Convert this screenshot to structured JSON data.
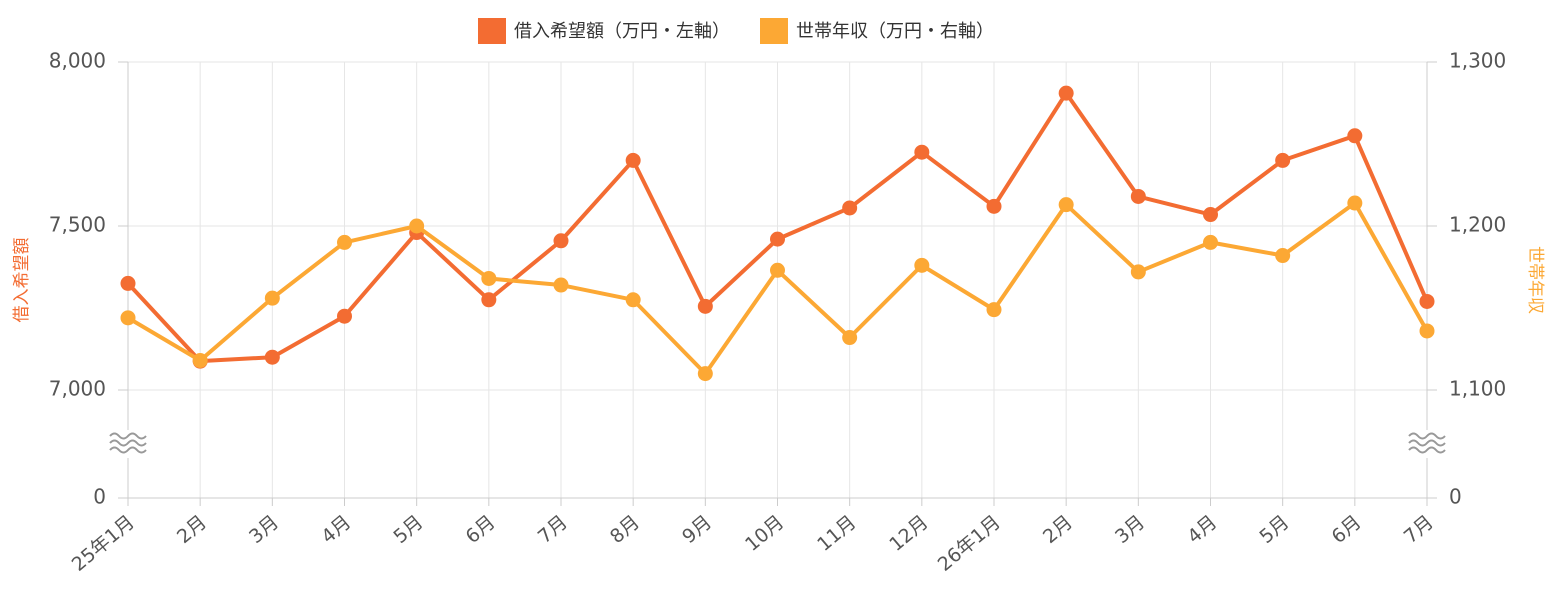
{
  "chart_data": {
    "type": "line",
    "categories": [
      "25年1月",
      "2月",
      "3月",
      "4月",
      "5月",
      "6月",
      "7月",
      "8月",
      "9月",
      "10月",
      "11月",
      "12月",
      "26年1月",
      "2月",
      "3月",
      "4月",
      "5月",
      "6月",
      "7月"
    ],
    "series": [
      {
        "name": "借入希望額（万円・左軸）",
        "color": "#f36c32",
        "values": [
          7325,
          7088,
          7100,
          7225,
          7480,
          7275,
          7455,
          7700,
          7255,
          7460,
          7555,
          7725,
          7560,
          7905,
          7590,
          7535,
          7700,
          7775,
          7270
        ]
      },
      {
        "name": "世帯年収（万円・右軸）",
        "color": "#fca834",
        "axis": "y2",
        "values": [
          1144,
          1118,
          1156,
          1190,
          1200,
          1168,
          1164,
          1155,
          1110,
          1173,
          1132,
          1176,
          1149,
          1213,
          1172,
          1190,
          1182,
          1214,
          1136
        ]
      }
    ],
    "ylabel": "借入希望額",
    "y2label": "世帯年収",
    "ylim": [
      0,
      8000
    ],
    "yticks": [
      0,
      {
        "value": 7000,
        "label": "7,000"
      },
      {
        "value": 7500,
        "label": "7,500"
      },
      {
        "value": 8000,
        "label": "8,000"
      }
    ],
    "y2lim": [
      0,
      1300
    ],
    "y2ticks": [
      0,
      {
        "value": 1100,
        "label": "1,100"
      },
      {
        "value": 1200,
        "label": "1,200"
      },
      {
        "value": 1300,
        "label": "1,300"
      }
    ],
    "axis_break": true,
    "grid": true,
    "legend": "top"
  }
}
